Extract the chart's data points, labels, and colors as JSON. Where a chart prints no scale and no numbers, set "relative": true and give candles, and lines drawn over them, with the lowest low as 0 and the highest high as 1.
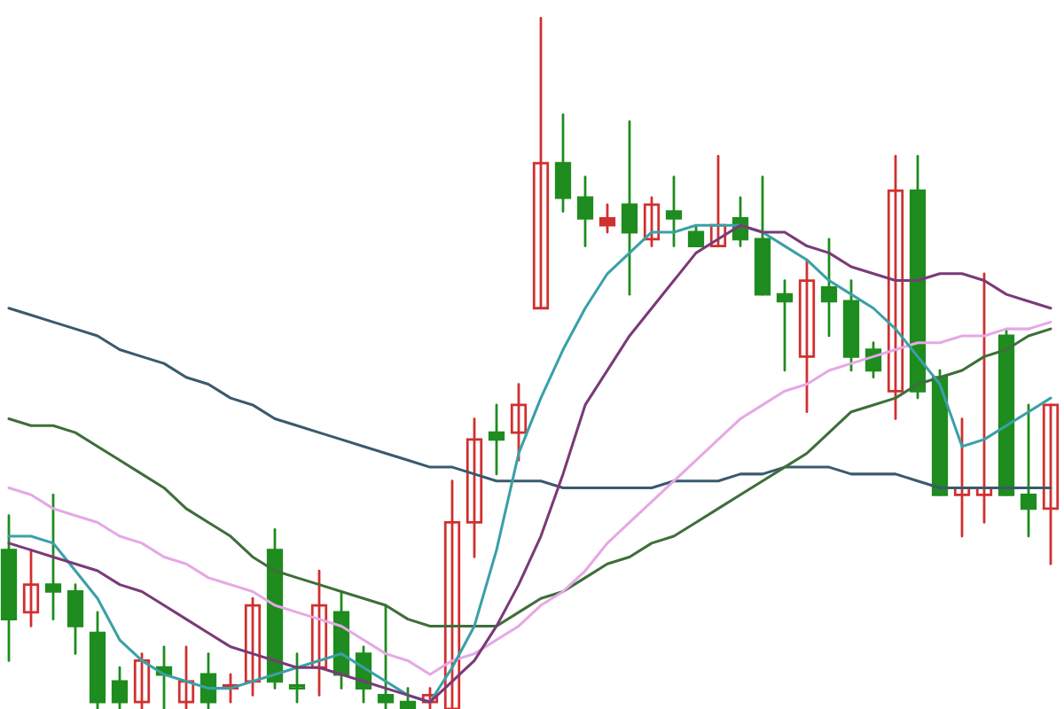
{
  "chart_data": {
    "type": "candlestick",
    "relative": true,
    "categories": [
      null,
      null,
      null,
      null,
      null,
      null,
      null,
      null,
      null,
      null,
      null,
      null,
      null,
      null,
      null,
      null,
      null,
      null,
      null,
      null,
      null,
      null,
      null,
      null,
      null,
      null,
      null,
      null,
      null,
      null,
      null,
      null,
      null,
      null,
      null,
      null,
      null,
      null,
      null,
      null,
      null,
      null,
      null,
      null,
      null,
      null,
      null,
      null
    ],
    "ohlc": [
      [
        0.23,
        0.28,
        0.07,
        0.13
      ],
      [
        0.14,
        0.23,
        0.12,
        0.18
      ],
      [
        0.18,
        0.31,
        0.13,
        0.17
      ],
      [
        0.17,
        0.18,
        0.08,
        0.12
      ],
      [
        0.11,
        0.14,
        0,
        0.01
      ],
      [
        0.04,
        0.06,
        0,
        0.01
      ],
      [
        0.01,
        0.08,
        0,
        0.07
      ],
      [
        0.06,
        0.09,
        0,
        0.05
      ],
      [
        0.01,
        0.09,
        0,
        0.04
      ],
      [
        0.05,
        0.08,
        0,
        0.01
      ],
      [
        0.03,
        0.05,
        0.01,
        0.03
      ],
      [
        0.04,
        0.16,
        0.02,
        0.15
      ],
      [
        0.23,
        0.26,
        0.03,
        0.04
      ],
      [
        0.03,
        0.08,
        0.01,
        0.03
      ],
      [
        0.06,
        0.2,
        0.02,
        0.15
      ],
      [
        0.14,
        0.17,
        0.03,
        0.05
      ],
      [
        0.08,
        0.09,
        0.01,
        0.03
      ],
      [
        0.02,
        0.15,
        0,
        0.01
      ],
      [
        0.01,
        0.03,
        0,
        0
      ],
      [
        0.01,
        0.03,
        0,
        0.02
      ],
      [
        0,
        0.33,
        0,
        0.27
      ],
      [
        0.27,
        0.42,
        0.22,
        0.39
      ],
      [
        0.4,
        0.44,
        0.34,
        0.39
      ],
      [
        0.4,
        0.47,
        0.36,
        0.44
      ],
      [
        0.58,
        1,
        0.58,
        0.79
      ],
      [
        0.79,
        0.86,
        0.72,
        0.74
      ],
      [
        0.74,
        0.77,
        0.67,
        0.71
      ],
      [
        0.71,
        0.73,
        0.69,
        0.7
      ],
      [
        0.73,
        0.85,
        0.6,
        0.69
      ],
      [
        0.68,
        0.74,
        0.67,
        0.73
      ],
      [
        0.72,
        0.77,
        0.67,
        0.71
      ],
      [
        0.69,
        0.7,
        0.67,
        0.67
      ],
      [
        0.67,
        0.8,
        0.67,
        0.7
      ],
      [
        0.71,
        0.74,
        0.67,
        0.68
      ],
      [
        0.68,
        0.77,
        0.6,
        0.6
      ],
      [
        0.6,
        0.62,
        0.49,
        0.59
      ],
      [
        0.51,
        0.65,
        0.43,
        0.62
      ],
      [
        0.61,
        0.68,
        0.54,
        0.59
      ],
      [
        0.59,
        0.62,
        0.49,
        0.51
      ],
      [
        0.52,
        0.53,
        0.48,
        0.49
      ],
      [
        0.46,
        0.8,
        0.42,
        0.75
      ],
      [
        0.75,
        0.8,
        0.45,
        0.46
      ],
      [
        0.48,
        0.49,
        0.31,
        0.31
      ],
      [
        0.31,
        0.42,
        0.25,
        0.32
      ],
      [
        0.31,
        0.63,
        0.27,
        0.32
      ],
      [
        0.54,
        0.55,
        0.31,
        0.31
      ],
      [
        0.31,
        0.44,
        0.25,
        0.29
      ],
      [
        0.29,
        0.44,
        0.21,
        0.44
      ]
    ],
    "colors": [
      "#1e8c1e",
      "#d03030",
      "#1e8c1e",
      "#1e8c1e",
      "#1e8c1e",
      "#1e8c1e",
      "#d03030",
      "#1e8c1e",
      "#d03030",
      "#1e8c1e",
      "#d03030",
      "#d03030",
      "#1e8c1e",
      "#1e8c1e",
      "#d03030",
      "#1e8c1e",
      "#1e8c1e",
      "#1e8c1e",
      "#1e8c1e",
      "#d03030",
      "#d03030",
      "#d03030",
      "#1e8c1e",
      "#d03030",
      "#d03030",
      "#1e8c1e",
      "#1e8c1e",
      "#d03030",
      "#1e8c1e",
      "#d03030",
      "#1e8c1e",
      "#1e8c1e",
      "#d03030",
      "#1e8c1e",
      "#1e8c1e",
      "#1e8c1e",
      "#d03030",
      "#1e8c1e",
      "#1e8c1e",
      "#1e8c1e",
      "#d03030",
      "#1e8c1e",
      "#1e8c1e",
      "#d03030",
      "#d03030",
      "#1e8c1e",
      "#1e8c1e",
      "#d03030"
    ],
    "series": [
      {
        "type": "line",
        "color": "#3a5a6e",
        "values": [
          0.58,
          0.57,
          0.56,
          0.55,
          0.54,
          0.52,
          0.51,
          0.5,
          0.48,
          0.47,
          0.45,
          0.44,
          0.42,
          0.41,
          0.4,
          0.39,
          0.38,
          0.37,
          0.36,
          0.35,
          0.35,
          0.34,
          0.33,
          0.33,
          0.33,
          0.32,
          0.32,
          0.32,
          0.32,
          0.32,
          0.33,
          0.33,
          0.33,
          0.34,
          0.34,
          0.35,
          0.35,
          0.35,
          0.34,
          0.34,
          0.34,
          0.33,
          0.32,
          0.32,
          0.32,
          0.32,
          0.32,
          0.32
        ]
      },
      {
        "type": "line",
        "color": "#3f6e3a",
        "values": [
          0.42,
          0.41,
          0.41,
          0.4,
          0.38,
          0.36,
          0.34,
          0.32,
          0.29,
          0.27,
          0.25,
          0.22,
          0.2,
          0.19,
          0.18,
          0.17,
          0.16,
          0.15,
          0.13,
          0.12,
          0.12,
          0.12,
          0.12,
          0.14,
          0.16,
          0.17,
          0.19,
          0.21,
          0.22,
          0.24,
          0.25,
          0.27,
          0.29,
          0.31,
          0.33,
          0.35,
          0.37,
          0.4,
          0.43,
          0.44,
          0.45,
          0.47,
          0.48,
          0.49,
          0.51,
          0.52,
          0.54,
          0.55
        ]
      },
      {
        "type": "line",
        "color": "#e6a8e6",
        "values": [
          0.32,
          0.31,
          0.29,
          0.28,
          0.27,
          0.25,
          0.24,
          0.22,
          0.21,
          0.19,
          0.18,
          0.17,
          0.15,
          0.14,
          0.13,
          0.12,
          0.1,
          0.08,
          0.07,
          0.05,
          0.07,
          0.08,
          0.1,
          0.12,
          0.15,
          0.17,
          0.2,
          0.24,
          0.27,
          0.3,
          0.33,
          0.36,
          0.39,
          0.42,
          0.44,
          0.46,
          0.47,
          0.49,
          0.5,
          0.51,
          0.52,
          0.53,
          0.53,
          0.54,
          0.54,
          0.55,
          0.55,
          0.56
        ]
      },
      {
        "type": "line",
        "color": "#3aa0a8",
        "values": [
          0.25,
          0.25,
          0.24,
          0.2,
          0.16,
          0.1,
          0.07,
          0.05,
          0.04,
          0.03,
          0.03,
          0.04,
          0.05,
          0.06,
          0.07,
          0.08,
          0.06,
          0.04,
          0.02,
          0.01,
          0.06,
          0.12,
          0.23,
          0.37,
          0.45,
          0.52,
          0.58,
          0.63,
          0.66,
          0.69,
          0.69,
          0.7,
          0.7,
          0.7,
          0.69,
          0.67,
          0.65,
          0.62,
          0.6,
          0.58,
          0.55,
          0.51,
          0.47,
          0.38,
          0.39,
          0.41,
          0.43,
          0.45
        ]
      },
      {
        "type": "line",
        "color": "#7a3a78",
        "values": [
          0.24,
          0.23,
          0.22,
          0.21,
          0.2,
          0.18,
          0.17,
          0.15,
          0.13,
          0.11,
          0.09,
          0.08,
          0.07,
          0.06,
          0.06,
          0.05,
          0.04,
          0.03,
          0.02,
          0.01,
          0.04,
          0.07,
          0.12,
          0.18,
          0.25,
          0.34,
          0.44,
          0.49,
          0.54,
          0.58,
          0.62,
          0.66,
          0.68,
          0.7,
          0.69,
          0.69,
          0.67,
          0.66,
          0.64,
          0.63,
          0.62,
          0.62,
          0.63,
          0.63,
          0.62,
          0.6,
          0.59,
          0.58
        ]
      }
    ]
  }
}
